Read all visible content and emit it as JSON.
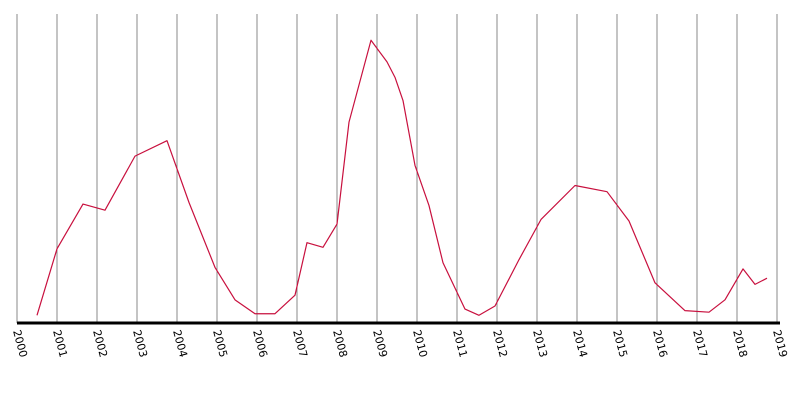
{
  "chart_data": {
    "type": "line",
    "title": "",
    "xlabel": "",
    "ylabel": "",
    "xlim": [
      2000,
      2019
    ],
    "ylim": [
      0,
      100
    ],
    "grid": "vertical",
    "legend": "none",
    "line_color": "#c8103e",
    "x_tick_labels": [
      "2000",
      "2001",
      "2002",
      "2003",
      "2004",
      "2005",
      "2006",
      "2007",
      "2008",
      "2009",
      "2010",
      "2011",
      "2012",
      "2013",
      "2014",
      "2015",
      "2016",
      "2017",
      "2018",
      "2019"
    ],
    "series": [
      {
        "x": [
          2000.5,
          2001.0,
          2001.65,
          2002.2,
          2002.95,
          2003.75,
          2004.3,
          2004.95,
          2005.45,
          2005.95,
          2006.45,
          2006.95,
          2007.25,
          2007.65,
          2008.0,
          2008.3,
          2008.85,
          2009.25,
          2009.45,
          2009.65,
          2009.95,
          2010.3,
          2010.65,
          2011.2,
          2011.55,
          2011.95,
          2012.55,
          2013.1,
          2013.95,
          2014.75,
          2015.3,
          2015.95,
          2016.7,
          2017.3,
          2017.7,
          2018.15,
          2018.45,
          2018.75
        ],
        "y": [
          2.5,
          24,
          38.5,
          36.5,
          54,
          59,
          39,
          18,
          7.5,
          3,
          3,
          9,
          26,
          24.5,
          32,
          65,
          91.5,
          84.5,
          79.5,
          72,
          51,
          38,
          19.5,
          4.5,
          2.5,
          5.5,
          20.5,
          33.5,
          44.5,
          42.5,
          33,
          13,
          4,
          3.5,
          7.5,
          17.5,
          12.5,
          14.5
        ]
      }
    ]
  }
}
